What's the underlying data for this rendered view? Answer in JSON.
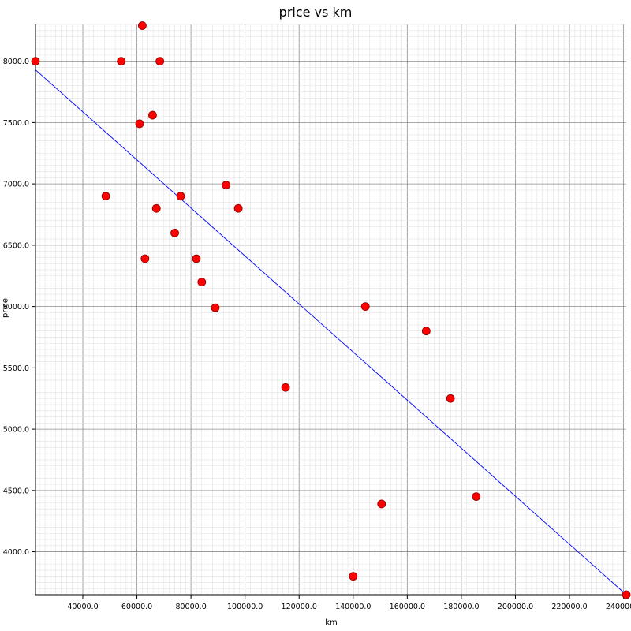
{
  "chart_data": {
    "type": "scatter",
    "title": "price vs km",
    "xlabel": "km",
    "ylabel": "price",
    "xlim": [
      22500,
      241000
    ],
    "ylim": [
      3650,
      8300
    ],
    "x_ticks": [
      40000,
      60000,
      80000,
      100000,
      120000,
      140000,
      160000,
      180000,
      200000,
      220000,
      240000
    ],
    "y_ticks": [
      4000,
      4500,
      5000,
      5500,
      6000,
      6500,
      7000,
      7500,
      8000
    ],
    "tick_format_decimals": 1,
    "grid": true,
    "series": [
      {
        "kind": "points",
        "color": "#ff0000",
        "edge_color": "#8b0000",
        "x": [
          22500,
          48500,
          54200,
          62000,
          61000,
          68500,
          65800,
          76200,
          67200,
          74000,
          63000,
          82000,
          84000,
          89000,
          93000,
          97500,
          115000,
          144500,
          140000,
          150500,
          167000,
          176000,
          185500,
          241000
        ],
        "y": [
          8000,
          6900,
          8000,
          8290,
          7490,
          8000,
          7560,
          6900,
          6800,
          6600,
          6390,
          6390,
          6200,
          5990,
          6990,
          6800,
          5340,
          6000,
          3800,
          4390,
          5800,
          5250,
          4450,
          3650
        ]
      },
      {
        "kind": "line",
        "color": "#0000ff",
        "x": [
          22500,
          241000
        ],
        "y": [
          7930,
          3650
        ]
      }
    ]
  }
}
